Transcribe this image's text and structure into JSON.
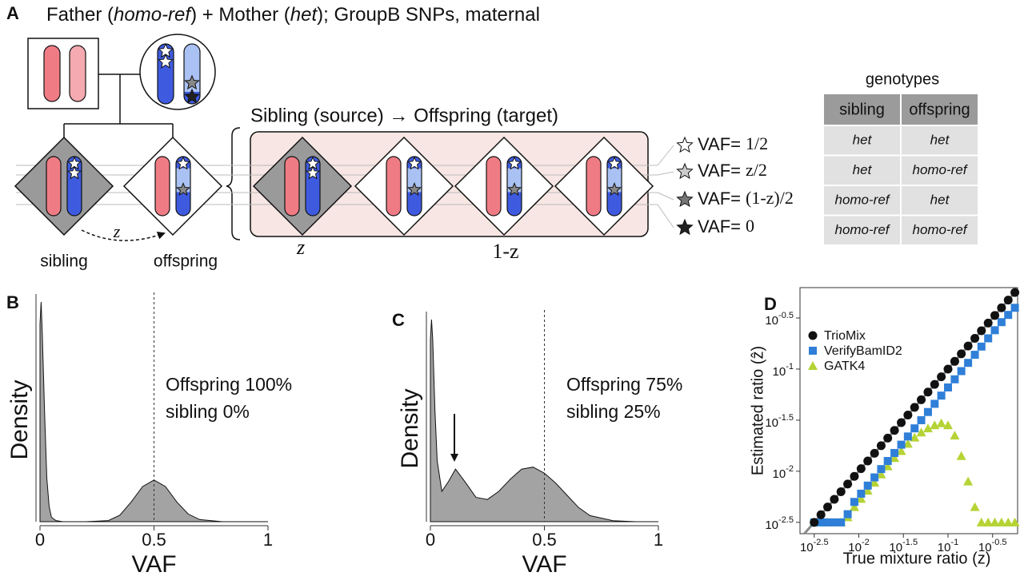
{
  "panel_a": {
    "label": "A",
    "title": [
      "Father (",
      "homo-ref",
      ") + Mother (",
      "het",
      "); GroupB SNPs, maternal"
    ],
    "mixture_title": "Sibling (source) → Offspring (target)",
    "vaf_legend": [
      {
        "label": "VAF=",
        "value": "1/2"
      },
      {
        "label": "VAF=",
        "value": "z/2"
      },
      {
        "label": "VAF=",
        "value": "(1-z)/2"
      },
      {
        "label": "VAF=",
        "value": "0"
      }
    ],
    "transfer_label": "z",
    "sibling_label": "sibling",
    "offspring_label": "offspring",
    "fraction_labels": [
      "z",
      "1-z"
    ],
    "genotypes": {
      "title": "genotypes",
      "columns": [
        "sibling",
        "offspring"
      ],
      "rows": [
        [
          "het",
          "het"
        ],
        [
          "het",
          "homo-ref"
        ],
        [
          "homo-ref",
          "het"
        ],
        [
          "homo-ref",
          "homo-ref"
        ]
      ]
    }
  },
  "chart_data": [
    {
      "type": "area",
      "label": "B",
      "x": [
        0,
        0.005,
        0.01,
        0.02,
        0.03,
        0.04,
        0.05,
        0.07,
        0.1,
        0.2,
        0.3,
        0.35,
        0.4,
        0.45,
        0.5,
        0.55,
        0.6,
        0.65,
        0.7,
        0.8,
        0.9,
        1
      ],
      "values": [
        0.9,
        1.0,
        0.85,
        0.5,
        0.2,
        0.07,
        0.02,
        0.005,
        0,
        0,
        0.005,
        0.03,
        0.09,
        0.16,
        0.19,
        0.16,
        0.09,
        0.035,
        0.01,
        0,
        0,
        0
      ],
      "color": "#a3a3a3",
      "xlim": [
        0,
        1
      ],
      "ylim": [
        0,
        1
      ],
      "xticks": [
        0,
        0.5,
        1
      ],
      "xlabel": "VAF",
      "ylabel": "Density",
      "vline": 0.5,
      "annotation": [
        "Offspring 100%",
        "sibling 0%"
      ]
    },
    {
      "type": "area",
      "label": "C",
      "x": [
        0,
        0.005,
        0.01,
        0.02,
        0.03,
        0.05,
        0.08,
        0.11,
        0.15,
        0.2,
        0.25,
        0.3,
        0.35,
        0.4,
        0.45,
        0.5,
        0.55,
        0.6,
        0.65,
        0.7,
        0.8,
        0.9,
        1
      ],
      "values": [
        0.9,
        1.0,
        0.9,
        0.55,
        0.3,
        0.15,
        0.2,
        0.26,
        0.2,
        0.12,
        0.11,
        0.15,
        0.21,
        0.26,
        0.27,
        0.24,
        0.19,
        0.13,
        0.07,
        0.03,
        0.005,
        0,
        0
      ],
      "color": "#a3a3a3",
      "xlim": [
        0,
        1
      ],
      "ylim": [
        0,
        1
      ],
      "xticks": [
        0,
        0.5,
        1
      ],
      "xlabel": "VAF",
      "ylabel": "Density",
      "vline": 0.5,
      "annotation": [
        "Offspring 75%",
        "sibling 25%"
      ]
    },
    {
      "type": "scatter",
      "label": "D",
      "log_x": true,
      "log_y": true,
      "identity_line": true,
      "legend": "top-left",
      "x": [
        0.00316,
        0.00376,
        0.00447,
        0.00531,
        0.00631,
        0.0075,
        0.00891,
        0.0106,
        0.0126,
        0.015,
        0.0178,
        0.0211,
        0.0251,
        0.0299,
        0.0355,
        0.0422,
        0.0501,
        0.0596,
        0.0708,
        0.0841,
        0.1,
        0.119,
        0.141,
        0.168,
        0.2,
        0.237,
        0.282,
        0.335,
        0.398,
        0.473,
        0.562
      ],
      "series": [
        {
          "name": "TrioMix",
          "color": "#111111",
          "marker": "circle",
          "values": [
            0.00316,
            0.00376,
            0.00447,
            0.00531,
            0.00631,
            0.0075,
            0.00891,
            0.0106,
            0.0126,
            0.015,
            0.0178,
            0.0211,
            0.0251,
            0.0299,
            0.0355,
            0.0422,
            0.0501,
            0.0596,
            0.0708,
            0.0841,
            0.1,
            0.119,
            0.141,
            0.168,
            0.2,
            0.237,
            0.282,
            0.335,
            0.398,
            0.473,
            0.562
          ]
        },
        {
          "name": "VerifyBamID2",
          "color": "#2f7fd8",
          "marker": "square",
          "values": [
            0.00316,
            0.00316,
            0.00316,
            0.00316,
            0.00316,
            0.0038,
            0.00501,
            0.00603,
            0.00724,
            0.00871,
            0.0105,
            0.0126,
            0.0151,
            0.0182,
            0.0219,
            0.0263,
            0.0316,
            0.038,
            0.0457,
            0.055,
            0.0661,
            0.0794,
            0.0955,
            0.115,
            0.138,
            0.166,
            0.2,
            0.24,
            0.288,
            0.339,
            0.398
          ]
        },
        {
          "name": "GATK4",
          "color": "#b5d334",
          "marker": "triangle",
          "values": [
            0.00316,
            0.00316,
            0.00316,
            0.00316,
            0.00316,
            0.00355,
            0.00447,
            0.00537,
            0.00646,
            0.00776,
            0.00933,
            0.0112,
            0.0135,
            0.0158,
            0.0186,
            0.0214,
            0.024,
            0.0263,
            0.0282,
            0.0295,
            0.0282,
            0.0224,
            0.0141,
            0.00794,
            0.00447,
            0.00316,
            0.00316,
            0.00316,
            0.00316,
            0.00316,
            0.00316
          ]
        }
      ],
      "xlim": [
        0.00219,
        0.603
      ],
      "ylim": [
        0.00245,
        0.627
      ],
      "xticks": [
        {
          "value": 0.003162,
          "label": "10",
          "power": "-2.5"
        },
        {
          "value": 0.01,
          "label": "10",
          "power": "-2"
        },
        {
          "value": 0.03162,
          "label": "10",
          "power": "-1.5"
        },
        {
          "value": 0.1,
          "label": "10",
          "power": "-1"
        },
        {
          "value": 0.3162,
          "label": "10",
          "power": "-0.5"
        }
      ],
      "yticks": [
        {
          "value": 0.003162,
          "label": "10",
          "power": "-2.5"
        },
        {
          "value": 0.01,
          "label": "10",
          "power": "-2"
        },
        {
          "value": 0.03162,
          "label": "10",
          "power": "-1.5"
        },
        {
          "value": 0.1,
          "label": "10",
          "power": "-1"
        },
        {
          "value": 0.3162,
          "label": "10",
          "power": "-0.5"
        }
      ],
      "xlabel": "True mixture ratio (z)",
      "ylabel": "Estimated ratio (ẑ)"
    }
  ]
}
